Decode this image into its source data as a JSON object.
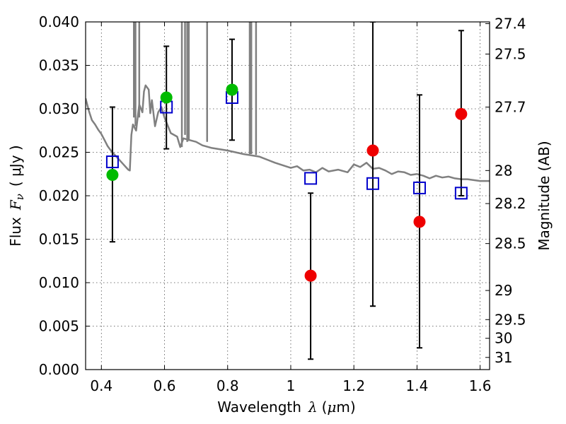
{
  "chart_data": {
    "type": "scatter",
    "title": "",
    "xlabel": "Wavelength",
    "xlabel_symbol": "λ",
    "xlabel_unit_open": "(",
    "xlabel_unit_mu": "μ",
    "xlabel_unit_rest": "m)",
    "ylabel": "Flux",
    "ylabel_symbol": "F",
    "ylabel_subscript": "ν",
    "ylabel_unit": "( μJy )",
    "ylabel_right": "Magnitude (AB)",
    "xlim": [
      0.35,
      1.63
    ],
    "ylim": [
      0.0,
      0.04
    ],
    "grid": true,
    "x_ticks": [
      {
        "value": 0.4,
        "label": "0.4"
      },
      {
        "value": 0.6,
        "label": "0.6"
      },
      {
        "value": 0.8,
        "label": "0.8"
      },
      {
        "value": 1.0,
        "label": "1"
      },
      {
        "value": 1.2,
        "label": "1.2"
      },
      {
        "value": 1.4,
        "label": "1.4"
      },
      {
        "value": 1.6,
        "label": "1.6"
      }
    ],
    "y_ticks": [
      {
        "value": 0.0,
        "label": "0.000"
      },
      {
        "value": 0.005,
        "label": "0.005"
      },
      {
        "value": 0.01,
        "label": "0.010"
      },
      {
        "value": 0.015,
        "label": "0.015"
      },
      {
        "value": 0.02,
        "label": "0.020"
      },
      {
        "value": 0.025,
        "label": "0.025"
      },
      {
        "value": 0.03,
        "label": "0.030"
      },
      {
        "value": 0.035,
        "label": "0.035"
      },
      {
        "value": 0.04,
        "label": "0.040"
      }
    ],
    "right_ticks": [
      {
        "label": "27.4",
        "flux": 0.0398
      },
      {
        "label": "27.5",
        "flux": 0.0363
      },
      {
        "label": "27.7",
        "flux": 0.0302
      },
      {
        "label": "28",
        "flux": 0.0229
      },
      {
        "label": "28.2",
        "flux": 0.0191
      },
      {
        "label": "28.5",
        "flux": 0.0145
      },
      {
        "label": "29",
        "flux": 0.0091
      },
      {
        "label": "29.5",
        "flux": 0.00575
      },
      {
        "label": "30",
        "flux": 0.0036
      },
      {
        "label": "31",
        "flux": 0.0014
      }
    ],
    "colors": {
      "model": "#808080",
      "model_box": "#0000cc",
      "detection": "#00bb00",
      "upper": "#ee0000",
      "errorbar": "#000000"
    },
    "series": [
      {
        "name": "model_spectrum",
        "kind": "line",
        "x": [
          0.35,
          0.36,
          0.37,
          0.38,
          0.39,
          0.4,
          0.41,
          0.42,
          0.43,
          0.44,
          0.45,
          0.46,
          0.47,
          0.48,
          0.485,
          0.49,
          0.495,
          0.5,
          0.51,
          0.515,
          0.52,
          0.53,
          0.535,
          0.54,
          0.55,
          0.555,
          0.56,
          0.57,
          0.58,
          0.59,
          0.6,
          0.62,
          0.64,
          0.65,
          0.66,
          0.68,
          0.7,
          0.72,
          0.75,
          0.8,
          0.85,
          0.9,
          0.95,
          1.0,
          1.02,
          1.04,
          1.06,
          1.08,
          1.1,
          1.12,
          1.15,
          1.18,
          1.2,
          1.22,
          1.24,
          1.26,
          1.28,
          1.3,
          1.32,
          1.34,
          1.36,
          1.38,
          1.4,
          1.42,
          1.44,
          1.46,
          1.48,
          1.5,
          1.52,
          1.54,
          1.56,
          1.58,
          1.6,
          1.63
        ],
        "y": [
          0.0312,
          0.0298,
          0.0287,
          0.0282,
          0.0276,
          0.0271,
          0.0264,
          0.0257,
          0.0252,
          0.0248,
          0.0244,
          0.024,
          0.0236,
          0.0232,
          0.023,
          0.0229,
          0.027,
          0.0282,
          0.0275,
          0.029,
          0.0305,
          0.0296,
          0.032,
          0.0327,
          0.0322,
          0.0295,
          0.031,
          0.028,
          0.0296,
          0.0302,
          0.029,
          0.0272,
          0.0268,
          0.0256,
          0.0266,
          0.0264,
          0.0262,
          0.0258,
          0.0255,
          0.0252,
          0.0248,
          0.0245,
          0.0238,
          0.0232,
          0.0234,
          0.0229,
          0.023,
          0.0227,
          0.0232,
          0.0228,
          0.023,
          0.0227,
          0.0236,
          0.0233,
          0.0238,
          0.0231,
          0.0232,
          0.0229,
          0.0225,
          0.0228,
          0.0227,
          0.0224,
          0.0225,
          0.0223,
          0.022,
          0.0223,
          0.0221,
          0.0222,
          0.022,
          0.0219,
          0.0219,
          0.0218,
          0.0217,
          0.0217
        ]
      },
      {
        "name": "emission_lines",
        "kind": "spikes",
        "x": [
          0.503,
          0.508,
          0.52,
          0.655,
          0.665,
          0.672,
          0.677,
          0.735,
          0.87,
          0.875,
          0.89
        ],
        "y": [
          0.04,
          0.04,
          0.04,
          0.04,
          0.04,
          0.04,
          0.04,
          0.04,
          0.04,
          0.04,
          0.04
        ],
        "y_base": [
          0.029,
          0.028,
          0.029,
          0.0256,
          0.027,
          0.0262,
          0.0263,
          0.0262,
          0.0248,
          0.0248,
          0.0247
        ]
      },
      {
        "name": "model_photometry",
        "kind": "square",
        "x": [
          0.435,
          0.606,
          0.814,
          1.063,
          1.26,
          1.408,
          1.54
        ],
        "y": [
          0.0239,
          0.0302,
          0.0313,
          0.022,
          0.0214,
          0.0209,
          0.0203
        ]
      },
      {
        "name": "detections",
        "kind": "circle",
        "x": [
          0.435,
          0.606,
          0.814
        ],
        "y": [
          0.0224,
          0.0313,
          0.0322
        ],
        "err_low": [
          0.0147,
          0.0254,
          0.0264
        ],
        "err_high": [
          0.0302,
          0.0372,
          0.038
        ]
      },
      {
        "name": "upper_limits",
        "kind": "circle",
        "x": [
          1.063,
          1.26,
          1.408,
          1.54
        ],
        "y": [
          0.0108,
          0.0252,
          0.017,
          0.0294
        ],
        "err_low": [
          0.0012,
          0.0073,
          0.0025,
          0.02
        ],
        "err_high": [
          0.0203,
          0.04,
          0.0316,
          0.039
        ]
      }
    ]
  }
}
